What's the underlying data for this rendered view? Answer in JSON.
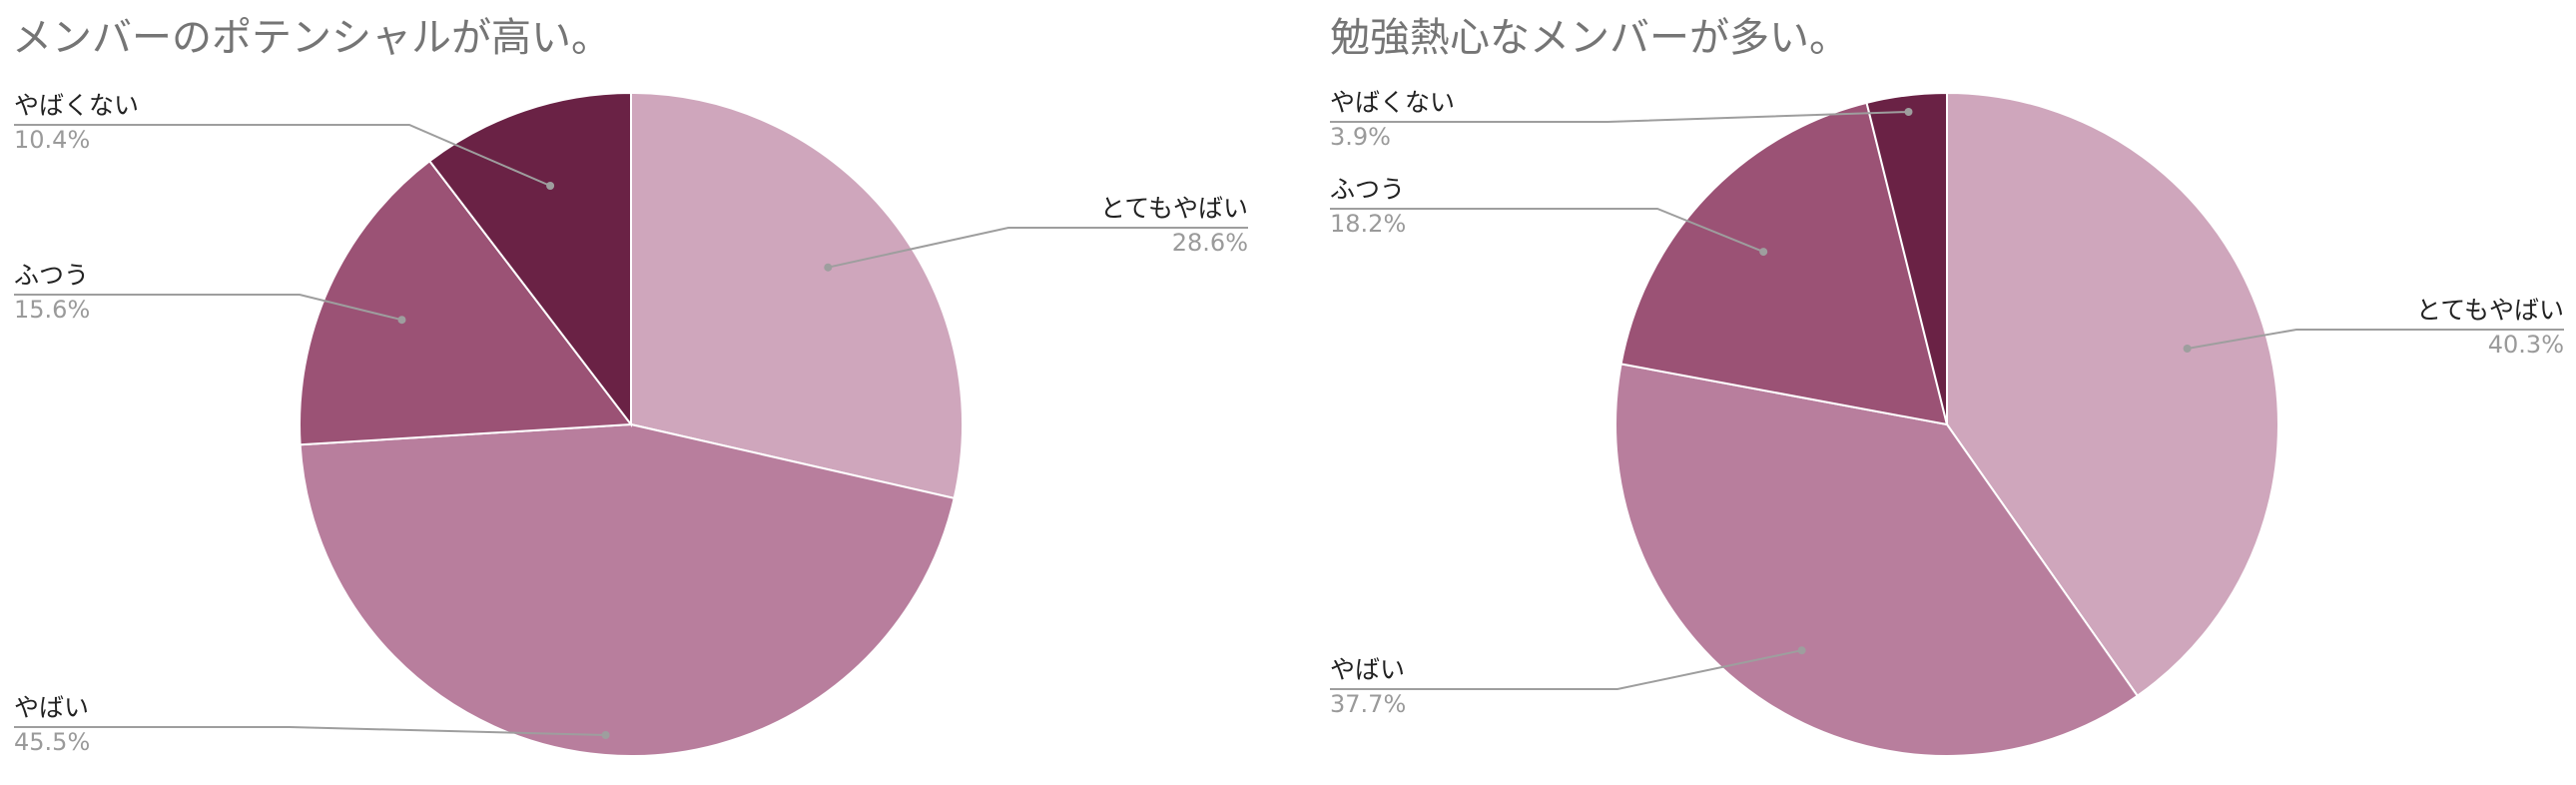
{
  "chart_data": [
    {
      "type": "pie",
      "title": "メンバーのポテンシャルが高い。",
      "slices": [
        {
          "label": "とてもやばい",
          "value": 28.6,
          "display": "28.6%",
          "color": "#cfa6bc"
        },
        {
          "label": "やばい",
          "value": 45.5,
          "display": "45.5%",
          "color": "#b87e9d"
        },
        {
          "label": "ふつう",
          "value": 15.6,
          "display": "15.6%",
          "color": "#9b5275"
        },
        {
          "label": "やばくない",
          "value": 10.4,
          "display": "10.4%",
          "color": "#6a2245"
        }
      ],
      "start_angle": "12 o'clock",
      "direction": "clockwise",
      "legend": "callout labels"
    },
    {
      "type": "pie",
      "title": "勉強熱心なメンバーが多い。",
      "slices": [
        {
          "label": "とてもやばい",
          "value": 40.3,
          "display": "40.3%",
          "color": "#cfa6bc"
        },
        {
          "label": "やばい",
          "value": 37.7,
          "display": "37.7%",
          "color": "#b87e9d"
        },
        {
          "label": "ふつう",
          "value": 18.2,
          "display": "18.2%",
          "color": "#9b5275"
        },
        {
          "label": "やばくない",
          "value": 3.9,
          "display": "3.9%",
          "color": "#6a2245"
        }
      ],
      "start_angle": "12 o'clock",
      "direction": "clockwise",
      "legend": "callout labels"
    }
  ]
}
